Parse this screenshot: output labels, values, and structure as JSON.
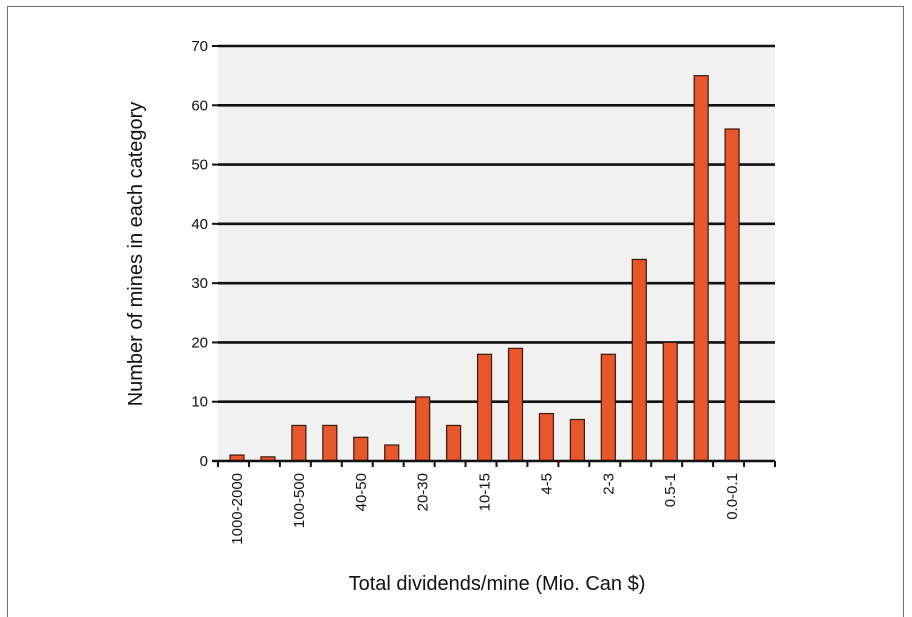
{
  "chart_data": {
    "type": "bar",
    "xlabel": "Total dividends/mine (Mio. Can $)",
    "ylabel": "Number of mines in each category",
    "ylim": [
      0,
      70
    ],
    "yticks": [
      0,
      10,
      20,
      30,
      40,
      50,
      60,
      70
    ],
    "grid": "horizontal",
    "categories": [
      "1000-2000",
      "",
      "100-500",
      "",
      "40-50",
      "",
      "20-30",
      "",
      "10-15",
      "",
      "4-5",
      "",
      "2-3",
      "",
      "0.5-1",
      "",
      "0.0-0.1",
      ""
    ],
    "values": [
      1,
      0.7,
      6,
      6,
      4,
      2.7,
      10.8,
      6,
      18,
      19,
      8,
      7,
      18,
      34,
      20,
      65,
      56,
      null
    ],
    "colors": {
      "bar_fill": "#e8562c",
      "bar_stroke": "#3a1a0e",
      "plot_background": "#f1f1f1"
    }
  }
}
